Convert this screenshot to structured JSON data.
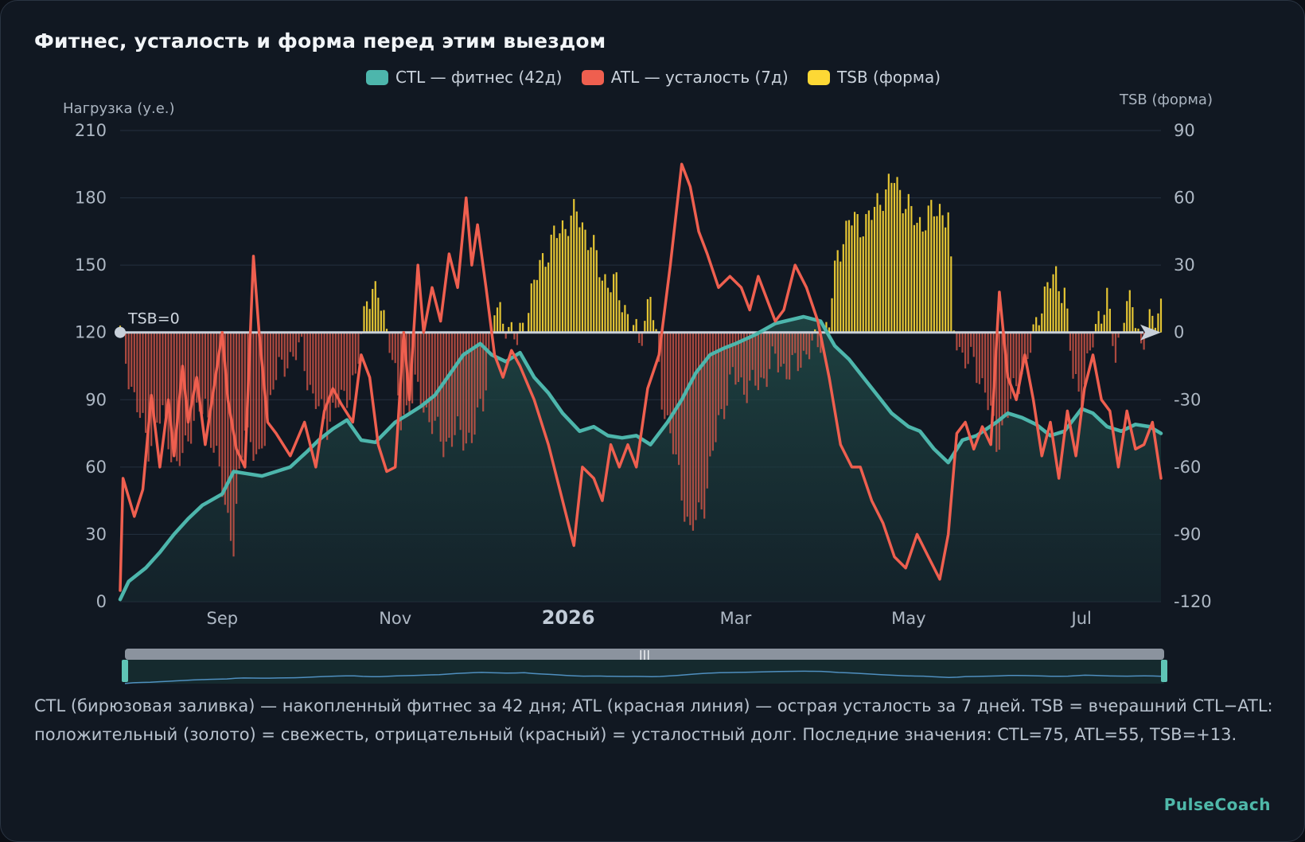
{
  "title": "Фитнес, усталость и форма перед этим выездом",
  "caption": "CTL (бирюзовая заливка) — накопленный фитнес за 42 дня; ATL (красная линия) — острая усталость за 7 дней. TSB = вчерашний CTL−ATL: положительный (золото) = свежесть, отрицательный (красный) = усталостный долг. Последние значения: CTL=75, ATL=55, TSB=+13.",
  "brand": "PulseCoach",
  "colors": {
    "ctl": "#4db6ac",
    "atl": "#ef5f4f",
    "tsb_pos": "#fdd835",
    "tsb_neg": "#e05a4a"
  },
  "chart_data": {
    "type": "line",
    "legend_position": "top-center",
    "grid": true,
    "series": [
      {
        "name": "CTL — фитнес (42д)",
        "kind": "area",
        "axis": "left",
        "color": "#4db6ac"
      },
      {
        "name": "ATL — усталость (7д)",
        "kind": "line",
        "axis": "left",
        "color": "#ef5f4f"
      },
      {
        "name": "TSB (форма)",
        "kind": "bar",
        "axis": "right",
        "color": "#fdd835"
      }
    ],
    "y_left": {
      "label": "Нагрузка (у.е.)",
      "range": [
        0,
        210
      ],
      "ticks": [
        0,
        30,
        60,
        90,
        120,
        150,
        180,
        210
      ]
    },
    "y_right": {
      "label": "TSB (форма)",
      "range": [
        -120,
        90
      ],
      "ticks": [
        -120,
        -90,
        -60,
        -30,
        0,
        30,
        60,
        90
      ]
    },
    "x": {
      "range": [
        "2025-07-27",
        "2026-07-29"
      ],
      "ticks": [
        {
          "date": "2025-09-01",
          "label": "Sep"
        },
        {
          "date": "2025-11-01",
          "label": "Nov"
        },
        {
          "date": "2026-01-01",
          "label": "2026"
        },
        {
          "date": "2026-03-01",
          "label": "Mar"
        },
        {
          "date": "2026-05-01",
          "label": "May"
        },
        {
          "date": "2026-07-01",
          "label": "Jul"
        }
      ]
    },
    "zero_line_label": "TSB=0",
    "ctl_points": [
      [
        "2025-07-27",
        1
      ],
      [
        "2025-07-30",
        9
      ],
      [
        "2025-08-05",
        15
      ],
      [
        "2025-08-10",
        22
      ],
      [
        "2025-08-15",
        30
      ],
      [
        "2025-08-20",
        37
      ],
      [
        "2025-08-25",
        43
      ],
      [
        "2025-09-01",
        48
      ],
      [
        "2025-09-05",
        58
      ],
      [
        "2025-09-10",
        57
      ],
      [
        "2025-09-15",
        56
      ],
      [
        "2025-09-20",
        58
      ],
      [
        "2025-09-25",
        60
      ],
      [
        "2025-10-01",
        67
      ],
      [
        "2025-10-05",
        72
      ],
      [
        "2025-10-10",
        77
      ],
      [
        "2025-10-15",
        81
      ],
      [
        "2025-10-20",
        72
      ],
      [
        "2025-10-25",
        71
      ],
      [
        "2025-11-01",
        80
      ],
      [
        "2025-11-05",
        83
      ],
      [
        "2025-11-10",
        87
      ],
      [
        "2025-11-15",
        92
      ],
      [
        "2025-11-20",
        101
      ],
      [
        "2025-11-25",
        110
      ],
      [
        "2025-12-01",
        115
      ],
      [
        "2025-12-05",
        110
      ],
      [
        "2025-12-10",
        107
      ],
      [
        "2025-12-15",
        111
      ],
      [
        "2025-12-20",
        100
      ],
      [
        "2025-12-25",
        93
      ],
      [
        "2025-12-30",
        84
      ],
      [
        "2026-01-05",
        76
      ],
      [
        "2026-01-10",
        78
      ],
      [
        "2026-01-15",
        74
      ],
      [
        "2026-01-20",
        73
      ],
      [
        "2026-01-25",
        74
      ],
      [
        "2026-01-30",
        70
      ],
      [
        "2026-02-05",
        80
      ],
      [
        "2026-02-10",
        90
      ],
      [
        "2026-02-15",
        102
      ],
      [
        "2026-02-20",
        110
      ],
      [
        "2026-02-25",
        113
      ],
      [
        "2026-03-01",
        115
      ],
      [
        "2026-03-08",
        119
      ],
      [
        "2026-03-15",
        124
      ],
      [
        "2026-03-25",
        127
      ],
      [
        "2026-03-31",
        125
      ],
      [
        "2026-04-05",
        114
      ],
      [
        "2026-04-10",
        108
      ],
      [
        "2026-04-15",
        100
      ],
      [
        "2026-04-20",
        92
      ],
      [
        "2026-04-25",
        84
      ],
      [
        "2026-05-01",
        78
      ],
      [
        "2026-05-05",
        76
      ],
      [
        "2026-05-10",
        68
      ],
      [
        "2026-05-15",
        62
      ],
      [
        "2026-05-20",
        72
      ],
      [
        "2026-05-25",
        74
      ],
      [
        "2026-06-01",
        80
      ],
      [
        "2026-06-05",
        84
      ],
      [
        "2026-06-10",
        82
      ],
      [
        "2026-06-15",
        79
      ],
      [
        "2026-06-20",
        74
      ],
      [
        "2026-06-25",
        76
      ],
      [
        "2026-07-01",
        86
      ],
      [
        "2026-07-05",
        84
      ],
      [
        "2026-07-10",
        78
      ],
      [
        "2026-07-15",
        76
      ],
      [
        "2026-07-20",
        79
      ],
      [
        "2026-07-25",
        78
      ],
      [
        "2026-07-29",
        75
      ]
    ],
    "atl_points": [
      [
        "2025-07-27",
        5
      ],
      [
        "2025-07-28",
        55
      ],
      [
        "2025-08-01",
        38
      ],
      [
        "2025-08-04",
        50
      ],
      [
        "2025-08-07",
        92
      ],
      [
        "2025-08-10",
        60
      ],
      [
        "2025-08-13",
        90
      ],
      [
        "2025-08-15",
        65
      ],
      [
        "2025-08-18",
        105
      ],
      [
        "2025-08-20",
        80
      ],
      [
        "2025-08-23",
        100
      ],
      [
        "2025-08-26",
        70
      ],
      [
        "2025-09-01",
        120
      ],
      [
        "2025-09-03",
        90
      ],
      [
        "2025-09-06",
        68
      ],
      [
        "2025-09-09",
        60
      ],
      [
        "2025-09-12",
        154
      ],
      [
        "2025-09-14",
        120
      ],
      [
        "2025-09-17",
        80
      ],
      [
        "2025-09-20",
        75
      ],
      [
        "2025-09-25",
        65
      ],
      [
        "2025-09-30",
        80
      ],
      [
        "2025-10-04",
        60
      ],
      [
        "2025-10-07",
        85
      ],
      [
        "2025-10-10",
        95
      ],
      [
        "2025-10-13",
        88
      ],
      [
        "2025-10-17",
        80
      ],
      [
        "2025-10-20",
        110
      ],
      [
        "2025-10-23",
        100
      ],
      [
        "2025-10-26",
        70
      ],
      [
        "2025-10-29",
        58
      ],
      [
        "2025-11-01",
        60
      ],
      [
        "2025-11-04",
        120
      ],
      [
        "2025-11-06",
        90
      ],
      [
        "2025-11-09",
        150
      ],
      [
        "2025-11-11",
        120
      ],
      [
        "2025-11-14",
        140
      ],
      [
        "2025-11-17",
        125
      ],
      [
        "2025-11-20",
        155
      ],
      [
        "2025-11-23",
        140
      ],
      [
        "2025-11-26",
        180
      ],
      [
        "2025-11-28",
        150
      ],
      [
        "2025-11-30",
        168
      ],
      [
        "2025-12-03",
        140
      ],
      [
        "2025-12-06",
        110
      ],
      [
        "2025-12-09",
        100
      ],
      [
        "2025-12-12",
        112
      ],
      [
        "2025-12-15",
        105
      ],
      [
        "2025-12-20",
        90
      ],
      [
        "2025-12-25",
        70
      ],
      [
        "2025-12-30",
        45
      ],
      [
        "2026-01-03",
        25
      ],
      [
        "2026-01-06",
        60
      ],
      [
        "2026-01-10",
        55
      ],
      [
        "2026-01-13",
        45
      ],
      [
        "2026-01-16",
        70
      ],
      [
        "2026-01-19",
        60
      ],
      [
        "2026-01-22",
        70
      ],
      [
        "2026-01-25",
        60
      ],
      [
        "2026-01-29",
        95
      ],
      [
        "2026-02-02",
        110
      ],
      [
        "2026-02-06",
        150
      ],
      [
        "2026-02-10",
        195
      ],
      [
        "2026-02-13",
        185
      ],
      [
        "2026-02-16",
        165
      ],
      [
        "2026-02-19",
        155
      ],
      [
        "2026-02-23",
        140
      ],
      [
        "2026-02-27",
        145
      ],
      [
        "2026-03-03",
        140
      ],
      [
        "2026-03-06",
        130
      ],
      [
        "2026-03-09",
        145
      ],
      [
        "2026-03-12",
        135
      ],
      [
        "2026-03-15",
        125
      ],
      [
        "2026-03-18",
        130
      ],
      [
        "2026-03-22",
        150
      ],
      [
        "2026-03-26",
        140
      ],
      [
        "2026-03-30",
        125
      ],
      [
        "2026-04-03",
        100
      ],
      [
        "2026-04-07",
        70
      ],
      [
        "2026-04-11",
        60
      ],
      [
        "2026-04-14",
        60
      ],
      [
        "2026-04-18",
        45
      ],
      [
        "2026-04-22",
        35
      ],
      [
        "2026-04-26",
        20
      ],
      [
        "2026-04-30",
        15
      ],
      [
        "2026-05-04",
        30
      ],
      [
        "2026-05-08",
        20
      ],
      [
        "2026-05-12",
        10
      ],
      [
        "2026-05-15",
        30
      ],
      [
        "2026-05-18",
        75
      ],
      [
        "2026-05-21",
        80
      ],
      [
        "2026-05-24",
        68
      ],
      [
        "2026-05-27",
        78
      ],
      [
        "2026-05-30",
        70
      ],
      [
        "2026-06-02",
        138
      ],
      [
        "2026-06-05",
        100
      ],
      [
        "2026-06-08",
        90
      ],
      [
        "2026-06-11",
        110
      ],
      [
        "2026-06-14",
        90
      ],
      [
        "2026-06-17",
        65
      ],
      [
        "2026-06-20",
        80
      ],
      [
        "2026-06-23",
        55
      ],
      [
        "2026-06-26",
        85
      ],
      [
        "2026-06-29",
        65
      ],
      [
        "2026-07-02",
        95
      ],
      [
        "2026-07-05",
        110
      ],
      [
        "2026-07-08",
        90
      ],
      [
        "2026-07-11",
        85
      ],
      [
        "2026-07-14",
        60
      ],
      [
        "2026-07-17",
        85
      ],
      [
        "2026-07-20",
        68
      ],
      [
        "2026-07-23",
        70
      ],
      [
        "2026-07-26",
        80
      ],
      [
        "2026-07-29",
        55
      ]
    ],
    "tsb_points": [
      [
        "2025-07-27",
        0
      ],
      [
        "2025-08-01",
        -30
      ],
      [
        "2025-08-06",
        -50
      ],
      [
        "2025-08-11",
        -36
      ],
      [
        "2025-08-16",
        -62
      ],
      [
        "2025-08-21",
        -42
      ],
      [
        "2025-08-26",
        -32
      ],
      [
        "2025-09-01",
        -70
      ],
      [
        "2025-09-05",
        -95
      ],
      [
        "2025-09-09",
        -40
      ],
      [
        "2025-09-14",
        -60
      ],
      [
        "2025-09-19",
        -22
      ],
      [
        "2025-09-24",
        -12
      ],
      [
        "2025-09-29",
        -8
      ],
      [
        "2025-10-03",
        -30
      ],
      [
        "2025-10-08",
        -40
      ],
      [
        "2025-10-13",
        -30
      ],
      [
        "2025-10-18",
        -22
      ],
      [
        "2025-10-22",
        18
      ],
      [
        "2025-10-26",
        16
      ],
      [
        "2025-10-30",
        -2
      ],
      [
        "2025-11-03",
        -40
      ],
      [
        "2025-11-08",
        -25
      ],
      [
        "2025-11-13",
        -38
      ],
      [
        "2025-11-18",
        -50
      ],
      [
        "2025-11-23",
        -45
      ],
      [
        "2025-11-28",
        -48
      ],
      [
        "2025-12-02",
        -30
      ],
      [
        "2025-12-06",
        10
      ],
      [
        "2025-12-10",
        5
      ],
      [
        "2025-12-14",
        -5
      ],
      [
        "2025-12-18",
        12
      ],
      [
        "2025-12-22",
        30
      ],
      [
        "2025-12-27",
        42
      ],
      [
        "2026-01-01",
        50
      ],
      [
        "2026-01-04",
        53
      ],
      [
        "2026-01-09",
        40
      ],
      [
        "2026-01-13",
        25
      ],
      [
        "2026-01-18",
        20
      ],
      [
        "2026-01-22",
        8
      ],
      [
        "2026-01-26",
        -5
      ],
      [
        "2026-01-30",
        18
      ],
      [
        "2026-02-03",
        -28
      ],
      [
        "2026-02-08",
        -58
      ],
      [
        "2026-02-13",
        -90
      ],
      [
        "2026-02-18",
        -75
      ],
      [
        "2026-02-23",
        -40
      ],
      [
        "2026-02-28",
        -20
      ],
      [
        "2026-03-05",
        -25
      ],
      [
        "2026-03-10",
        -22
      ],
      [
        "2026-03-15",
        -12
      ],
      [
        "2026-03-20",
        -18
      ],
      [
        "2026-03-25",
        -10
      ],
      [
        "2026-03-30",
        -5
      ],
      [
        "2026-04-03",
        5
      ],
      [
        "2026-04-06",
        35
      ],
      [
        "2026-04-10",
        50
      ],
      [
        "2026-04-14",
        48
      ],
      [
        "2026-04-18",
        52
      ],
      [
        "2026-04-22",
        62
      ],
      [
        "2026-04-26",
        68
      ],
      [
        "2026-04-30",
        58
      ],
      [
        "2026-05-04",
        48
      ],
      [
        "2026-05-08",
        52
      ],
      [
        "2026-05-12",
        55
      ],
      [
        "2026-05-15",
        52
      ],
      [
        "2026-05-17",
        0
      ],
      [
        "2026-05-20",
        -10
      ],
      [
        "2026-05-24",
        -15
      ],
      [
        "2026-05-28",
        -25
      ],
      [
        "2026-06-01",
        -50
      ],
      [
        "2026-06-05",
        -35
      ],
      [
        "2026-06-09",
        -20
      ],
      [
        "2026-06-13",
        -8
      ],
      [
        "2026-06-16",
        10
      ],
      [
        "2026-06-19",
        20
      ],
      [
        "2026-06-22",
        25
      ],
      [
        "2026-06-25",
        18
      ],
      [
        "2026-06-28",
        -20
      ],
      [
        "2026-07-01",
        -28
      ],
      [
        "2026-07-04",
        -10
      ],
      [
        "2026-07-07",
        8
      ],
      [
        "2026-07-10",
        14
      ],
      [
        "2026-07-13",
        -12
      ],
      [
        "2026-07-16",
        10
      ],
      [
        "2026-07-19",
        12
      ],
      [
        "2026-07-22",
        -5
      ],
      [
        "2026-07-26",
        5
      ],
      [
        "2026-07-29",
        13
      ]
    ],
    "last_values": {
      "CTL": 75,
      "ATL": 55,
      "TSB": 13
    }
  }
}
